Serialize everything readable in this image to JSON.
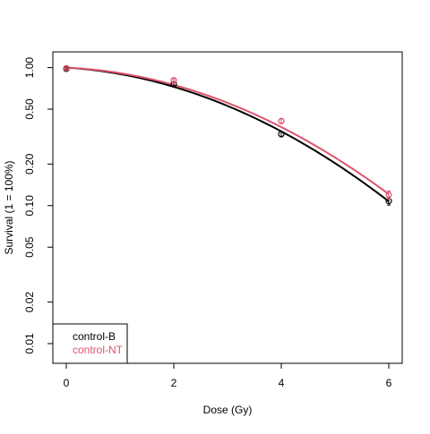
{
  "chart_data": {
    "type": "scatter",
    "title": "",
    "xlabel": "Dose (Gy)",
    "ylabel": "Survival (1 = 100%)",
    "x_ticks": [
      0,
      2,
      4,
      6
    ],
    "x_tick_labels": [
      "0",
      "2",
      "4",
      "6"
    ],
    "y_ticks": [
      0.01,
      0.02,
      0.05,
      0.1,
      0.2,
      0.5,
      1.0
    ],
    "y_tick_labels": [
      "0.01",
      "0.02",
      "0.05",
      "0.10",
      "0.20",
      "0.50",
      "1.00"
    ],
    "y_scale": "log",
    "xlim": [
      -0.25,
      6.25
    ],
    "ylim": [
      0.0072,
      1.3
    ],
    "grid": false,
    "legend_position": "bottom-left",
    "series": [
      {
        "name": "control-B",
        "color": "#000000",
        "x": [
          0,
          2,
          4,
          6
        ],
        "y": [
          0.98,
          0.76,
          0.33,
          0.108
        ],
        "err_low": [
          0.965,
          0.735,
          0.315,
          0.101
        ],
        "err_high": [
          0.995,
          0.785,
          0.345,
          0.115
        ],
        "fit": {
          "model": "linear-quadratic",
          "alpha": 0.054,
          "beta": 0.053
        }
      },
      {
        "name": "control-NT",
        "color": "#DF536B",
        "x": [
          0,
          2,
          4,
          6
        ],
        "y": [
          0.99,
          0.81,
          0.41,
          0.12
        ],
        "err_low": [
          0.975,
          0.79,
          0.395,
          0.112
        ],
        "err_high": [
          1.005,
          0.83,
          0.425,
          0.128
        ],
        "fit": {
          "model": "linear-quadratic",
          "alpha": 0.04,
          "beta": 0.052
        }
      }
    ]
  }
}
